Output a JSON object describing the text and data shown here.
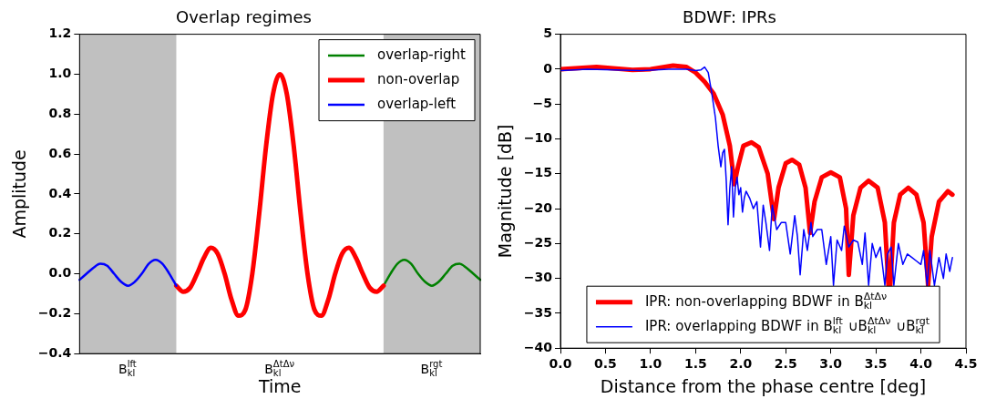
{
  "chart_data": [
    {
      "type": "line",
      "title": "Overlap regimes",
      "xlabel": "Time",
      "ylabel": "Amplitude",
      "categories": [
        null,
        null,
        null,
        null,
        null,
        null,
        null,
        "B$_{kl}$$^{lft}$",
        null,
        null,
        null,
        null,
        null,
        null,
        null,
        null,
        null,
        null,
        null,
        null,
        null,
        null,
        null,
        null,
        null,
        null,
        null,
        null,
        null,
        "B$_{kl}$$^{ΔtΔν}$",
        null,
        null,
        null,
        null,
        null,
        null,
        null,
        null,
        null,
        null,
        null,
        null,
        null,
        null,
        null,
        null,
        null,
        null,
        null,
        null,
        null,
        "B$_{kl}$$^{rgt}$",
        null,
        null,
        null,
        null,
        null,
        null,
        null
      ],
      "ylim": [
        -0.4,
        1.2
      ],
      "yticks": [
        {
          "value": -0.4,
          "label": "−0.4"
        },
        {
          "value": -0.2,
          "label": "−0.2"
        },
        {
          "value": 0,
          "label": "0.0"
        },
        {
          "value": 0.2,
          "label": "0.2"
        },
        {
          "value": 0.4,
          "label": "0.4"
        },
        {
          "value": 0.6,
          "label": "0.6"
        },
        {
          "value": 0.8,
          "label": "0.8"
        },
        {
          "value": 1,
          "label": "1.0"
        },
        {
          "value": 1.2,
          "label": "1.2"
        }
      ],
      "legend": "top right",
      "grid": false,
      "series": [
        {
          "name": "overlap-right",
          "color": "#008000",
          "values": [
            null,
            null,
            null,
            null,
            null,
            null,
            null,
            null,
            null,
            null,
            null,
            null,
            null,
            null,
            null,
            null,
            null,
            null,
            null,
            null,
            null,
            null,
            null,
            null,
            null,
            null,
            null,
            null,
            null,
            null,
            null,
            null,
            null,
            null,
            null,
            null,
            null,
            null,
            null,
            null,
            null,
            null,
            null,
            null,
            -0.06,
            0,
            0.05,
            0.07,
            0.05,
            0,
            -0.04,
            -0.06,
            -0.04,
            0,
            0.04,
            0.05,
            0.03,
            0,
            -0.03
          ]
        },
        {
          "name": "non-overlap",
          "color": "#ff0000",
          "values": [
            null,
            null,
            null,
            null,
            null,
            null,
            null,
            null,
            null,
            null,
            null,
            null,
            null,
            null,
            -0.06,
            -0.09,
            -0.07,
            0,
            0.08,
            0.13,
            0.1,
            0,
            -0.13,
            -0.21,
            -0.18,
            0,
            0.3,
            0.64,
            0.9,
            1,
            0.9,
            0.64,
            0.3,
            0,
            -0.18,
            -0.21,
            -0.13,
            0,
            0.1,
            0.13,
            0.08,
            0,
            -0.07,
            -0.09,
            -0.06,
            null,
            null,
            null,
            null,
            null,
            null,
            null,
            null,
            null,
            null,
            null,
            null,
            null,
            null
          ]
        },
        {
          "name": "overlap-left",
          "color": "#0000ff",
          "values": [
            -0.03,
            0,
            0.03,
            0.05,
            0.04,
            0,
            -0.04,
            -0.06,
            -0.04,
            0,
            0.05,
            0.07,
            0.05,
            0,
            -0.06,
            null,
            null,
            null,
            null,
            null,
            null,
            null,
            null,
            null,
            null,
            null,
            null,
            null,
            null,
            null,
            null,
            null,
            null,
            null,
            null,
            null,
            null,
            null,
            null,
            null,
            null,
            null,
            null,
            null,
            null,
            null,
            null,
            null,
            null,
            null,
            null,
            null,
            null,
            null,
            null,
            null,
            null,
            null,
            null
          ]
        }
      ]
    },
    {
      "type": "line",
      "title": "BDWF: IPRs",
      "xlabel": "Distance from the phase centre [deg]",
      "ylabel": "Magnitude [dB]",
      "xlim": [
        0,
        4.5
      ],
      "xticks": [
        {
          "value": 0,
          "label": "0.0"
        },
        {
          "value": 0.5,
          "label": "0.5"
        },
        {
          "value": 1,
          "label": "1.0"
        },
        {
          "value": 1.5,
          "label": "1.5"
        },
        {
          "value": 2,
          "label": "2.0"
        },
        {
          "value": 2.5,
          "label": "2.5"
        },
        {
          "value": 3,
          "label": "3.0"
        },
        {
          "value": 3.5,
          "label": "3.5"
        },
        {
          "value": 4,
          "label": "4.0"
        },
        {
          "value": 4.5,
          "label": "4.5"
        }
      ],
      "ylim": [
        -40,
        5
      ],
      "yticks": [
        {
          "value": -40,
          "label": "−40"
        },
        {
          "value": -35,
          "label": "−35"
        },
        {
          "value": -30,
          "label": "−30"
        },
        {
          "value": -25,
          "label": "−25"
        },
        {
          "value": -20,
          "label": "−20"
        },
        {
          "value": -15,
          "label": "−15"
        },
        {
          "value": -10,
          "label": "−10"
        },
        {
          "value": -5,
          "label": "−5"
        },
        0,
        5
      ],
      "legend": "bottom",
      "grid": false,
      "series": [
        {
          "name": "IPR: non-overlapping BDWF in B$_{kl}$$^{ΔtΔν}$",
          "color": "#ff0000",
          "x": [
            0,
            0.4,
            0.8,
            1,
            1.25,
            1.4,
            1.5,
            1.6,
            1.7,
            1.8,
            1.88,
            1.93,
            1.97,
            2.03,
            2.12,
            2.2,
            2.3,
            2.37,
            2.42,
            2.5,
            2.57,
            2.65,
            2.72,
            2.77,
            2.82,
            2.9,
            3,
            3.1,
            3.17,
            3.2,
            3.25,
            3.33,
            3.42,
            3.52,
            3.6,
            3.64,
            3.66,
            3.7,
            3.77,
            3.86,
            3.95,
            4.03,
            4.08,
            4.12,
            4.2,
            4.3,
            4.35
          ],
          "values": [
            0,
            0.3,
            -0.1,
            0,
            0.5,
            0.3,
            -0.5,
            -1.8,
            -3.5,
            -6.5,
            -11,
            -16.5,
            -14,
            -11,
            -10.5,
            -11.2,
            -15,
            -21.5,
            -17,
            -13.5,
            -13,
            -13.7,
            -17,
            -23.5,
            -19,
            -15.5,
            -14.8,
            -15.5,
            -20,
            -29.5,
            -21,
            -17,
            -16,
            -17,
            -22,
            -31,
            -31,
            -22,
            -18,
            -17,
            -18,
            -22,
            -31,
            -24,
            -19,
            -17.5,
            -18
          ]
        },
        {
          "name": "IPR: overlapping BDWF in B$_{kl}$$^{lft}$ ∪B$_{kl}$$^{ΔtΔν}$ ∪B$_{kl}$$^{rgt}$",
          "color": "#0000ff",
          "x": [
            0,
            0.3,
            0.6,
            0.9,
            1.2,
            1.4,
            1.5,
            1.56,
            1.6,
            1.64,
            1.68,
            1.72,
            1.75,
            1.78,
            1.8,
            1.82,
            1.84,
            1.86,
            1.88,
            1.9,
            1.92,
            1.94,
            1.96,
            1.98,
            2,
            2.02,
            2.04,
            2.06,
            2.1,
            2.14,
            2.18,
            2.22,
            2.25,
            2.28,
            2.32,
            2.35,
            2.4,
            2.45,
            2.5,
            2.55,
            2.6,
            2.63,
            2.66,
            2.7,
            2.74,
            2.78,
            2.8,
            2.85,
            2.9,
            2.95,
            3,
            3.03,
            3.07,
            3.12,
            3.15,
            3.2,
            3.25,
            3.3,
            3.35,
            3.38,
            3.42,
            3.46,
            3.5,
            3.55,
            3.6,
            3.63,
            3.67,
            3.7,
            3.75,
            3.8,
            3.85,
            3.9,
            3.95,
            4,
            4.03,
            4.07,
            4.1,
            4.15,
            4.2,
            4.25,
            4.28,
            4.32,
            4.35
          ],
          "values": [
            -0.2,
            0,
            -0.1,
            -0.2,
            0,
            0,
            -0.2,
            -0.1,
            0.3,
            -0.5,
            -3.5,
            -7,
            -11,
            -14,
            -12,
            -11.5,
            -16,
            -22.3,
            -17,
            -14,
            -21.2,
            -17,
            -15.5,
            -18,
            -17,
            -20.5,
            -18.5,
            -17.5,
            -18.5,
            -20,
            -19,
            -25.5,
            -19.5,
            -22,
            -26,
            -19.5,
            -23,
            -22,
            -22,
            -26.5,
            -21,
            -24,
            -29.5,
            -23,
            -26,
            -22,
            -24,
            -23,
            -23,
            -28,
            -24,
            -31,
            -24.5,
            -26,
            -22.5,
            -25.5,
            -24.5,
            -24.8,
            -28,
            -23.5,
            -31,
            -25,
            -27,
            -25.5,
            -31,
            -26.5,
            -25.5,
            -31,
            -25,
            -28,
            -26.5,
            -27,
            -27.5,
            -28,
            -26,
            -31,
            -26,
            -31,
            -27,
            -30,
            -26.5,
            -29,
            -27
          ]
        }
      ]
    }
  ]
}
